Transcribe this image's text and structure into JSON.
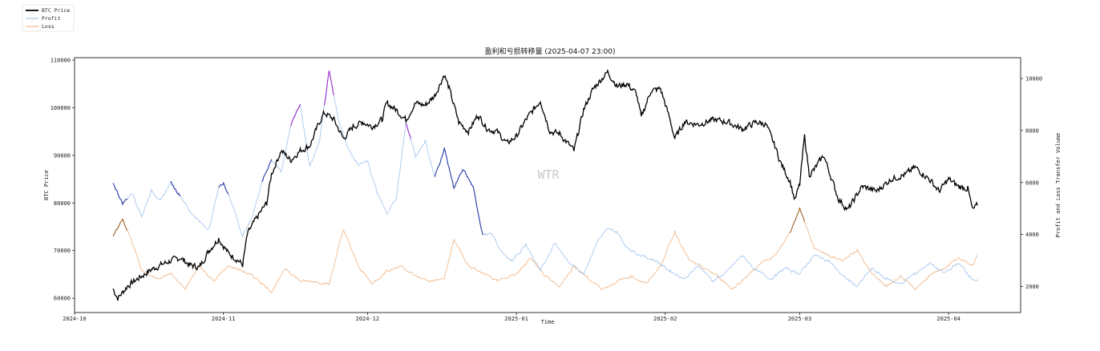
{
  "chart_data": {
    "type": "line",
    "title": "盈利和亏损转移量 (2025-04-07 23:00)",
    "xlabel": "Time",
    "ylabel_left": "BTC Price",
    "ylabel_right": "Profit and Loss Transfer Volume",
    "watermark": "WTR",
    "x_ticks": [
      "2024-10",
      "2024-11",
      "2024-12",
      "2025-01",
      "2025-02",
      "2025-03",
      "2025-04"
    ],
    "y_left_ticks": [
      60000,
      70000,
      80000,
      90000,
      100000,
      110000
    ],
    "y_right_ticks": [
      2000,
      4000,
      6000,
      8000,
      10000
    ],
    "y_left_range": [
      57000,
      110500
    ],
    "y_right_range": [
      1000,
      10800
    ],
    "x_range": [
      "2024-10-01",
      "2025-04-16"
    ],
    "legend_position": "top-left",
    "grid": false,
    "series": [
      {
        "name": "BTC Price",
        "axis": "left",
        "color": "#000000",
        "points": [
          [
            "2024-10-09",
            62000
          ],
          [
            "2024-10-10",
            60000
          ],
          [
            "2024-10-12",
            62500
          ],
          [
            "2024-10-14",
            64000
          ],
          [
            "2024-10-17",
            66000
          ],
          [
            "2024-10-20",
            67500
          ],
          [
            "2024-10-23",
            68500
          ],
          [
            "2024-10-25",
            67000
          ],
          [
            "2024-10-27",
            66500
          ],
          [
            "2024-10-29",
            70000
          ],
          [
            "2024-10-31",
            72500
          ],
          [
            "2024-11-02",
            69500
          ],
          [
            "2024-11-04",
            68000
          ],
          [
            "2024-11-05",
            67000
          ],
          [
            "2024-11-06",
            73500
          ],
          [
            "2024-11-08",
            77000
          ],
          [
            "2024-11-10",
            80000
          ],
          [
            "2024-11-11",
            86000
          ],
          [
            "2024-11-13",
            91000
          ],
          [
            "2024-11-15",
            89000
          ],
          [
            "2024-11-17",
            91000
          ],
          [
            "2024-11-19",
            92000
          ],
          [
            "2024-11-21",
            97000
          ],
          [
            "2024-11-22",
            99000
          ],
          [
            "2024-11-24",
            97500
          ],
          [
            "2024-11-26",
            93500
          ],
          [
            "2024-11-28",
            96000
          ],
          [
            "2024-11-30",
            97000
          ],
          [
            "2024-12-02",
            96000
          ],
          [
            "2024-12-04",
            97500
          ],
          [
            "2024-12-05",
            101000
          ],
          [
            "2024-12-07",
            99500
          ],
          [
            "2024-12-09",
            97500
          ],
          [
            "2024-12-11",
            101000
          ],
          [
            "2024-12-13",
            100500
          ],
          [
            "2024-12-15",
            102500
          ],
          [
            "2024-12-17",
            107000
          ],
          [
            "2024-12-18",
            104000
          ],
          [
            "2024-12-20",
            97000
          ],
          [
            "2024-12-22",
            95000
          ],
          [
            "2024-12-24",
            98500
          ],
          [
            "2024-12-26",
            95500
          ],
          [
            "2024-12-28",
            95000
          ],
          [
            "2024-12-30",
            92500
          ],
          [
            "2025-01-01",
            94000
          ],
          [
            "2025-01-03",
            97500
          ],
          [
            "2025-01-06",
            101500
          ],
          [
            "2025-01-08",
            95000
          ],
          [
            "2025-01-10",
            94500
          ],
          [
            "2025-01-13",
            91000
          ],
          [
            "2025-01-15",
            99500
          ],
          [
            "2025-01-17",
            104000
          ],
          [
            "2025-01-20",
            107500
          ],
          [
            "2025-01-22",
            104500
          ],
          [
            "2025-01-24",
            105000
          ],
          [
            "2025-01-26",
            103000
          ],
          [
            "2025-01-27",
            98000
          ],
          [
            "2025-01-29",
            103500
          ],
          [
            "2025-01-31",
            104000
          ],
          [
            "2025-02-02",
            97500
          ],
          [
            "2025-02-03",
            93500
          ],
          [
            "2025-02-05",
            97000
          ],
          [
            "2025-02-08",
            96500
          ],
          [
            "2025-02-11",
            97500
          ],
          [
            "2025-02-14",
            97000
          ],
          [
            "2025-02-17",
            95500
          ],
          [
            "2025-02-20",
            97000
          ],
          [
            "2025-02-22",
            96500
          ],
          [
            "2025-02-24",
            91500
          ],
          [
            "2025-02-25",
            88500
          ],
          [
            "2025-02-27",
            84500
          ],
          [
            "2025-02-28",
            80500
          ],
          [
            "2025-03-01",
            84000
          ],
          [
            "2025-03-02",
            94000
          ],
          [
            "2025-03-03",
            86000
          ],
          [
            "2025-03-04",
            87000
          ],
          [
            "2025-03-06",
            90000
          ],
          [
            "2025-03-09",
            81000
          ],
          [
            "2025-03-11",
            78500
          ],
          [
            "2025-03-14",
            83500
          ],
          [
            "2025-03-17",
            82500
          ],
          [
            "2025-03-20",
            85000
          ],
          [
            "2025-03-23",
            86000
          ],
          [
            "2025-03-25",
            87500
          ],
          [
            "2025-03-28",
            85000
          ],
          [
            "2025-03-30",
            82500
          ],
          [
            "2025-04-01",
            85000
          ],
          [
            "2025-04-03",
            83500
          ],
          [
            "2025-04-05",
            83000
          ],
          [
            "2025-04-06",
            78500
          ],
          [
            "2025-04-07",
            79500
          ]
        ]
      },
      {
        "name": "Profit",
        "axis": "right",
        "color": "#a9c8ee",
        "points": [
          [
            "2024-10-09",
            6000
          ],
          [
            "2024-10-11",
            5200
          ],
          [
            "2024-10-13",
            5600
          ],
          [
            "2024-10-15",
            4700
          ],
          [
            "2024-10-17",
            5700
          ],
          [
            "2024-10-19",
            5300
          ],
          [
            "2024-10-21",
            6000
          ],
          [
            "2024-10-23",
            5500
          ],
          [
            "2024-10-25",
            4900
          ],
          [
            "2024-10-27",
            4500
          ],
          [
            "2024-10-29",
            4200
          ],
          [
            "2024-10-31",
            5800
          ],
          [
            "2024-11-01",
            6000
          ],
          [
            "2024-11-03",
            5100
          ],
          [
            "2024-11-05",
            3900
          ],
          [
            "2024-11-07",
            4700
          ],
          [
            "2024-11-09",
            6000
          ],
          [
            "2024-11-11",
            6900
          ],
          [
            "2024-11-13",
            6400
          ],
          [
            "2024-11-15",
            8200
          ],
          [
            "2024-11-17",
            9000
          ],
          [
            "2024-11-19",
            6600
          ],
          [
            "2024-11-21",
            7600
          ],
          [
            "2024-11-23",
            10300
          ],
          [
            "2024-11-25",
            8400
          ],
          [
            "2024-11-27",
            7300
          ],
          [
            "2024-11-29",
            6700
          ],
          [
            "2024-12-01",
            6800
          ],
          [
            "2024-12-03",
            5600
          ],
          [
            "2024-12-05",
            4800
          ],
          [
            "2024-12-07",
            5400
          ],
          [
            "2024-12-09",
            8300
          ],
          [
            "2024-12-11",
            7000
          ],
          [
            "2024-12-13",
            7600
          ],
          [
            "2024-12-15",
            6200
          ],
          [
            "2024-12-17",
            7300
          ],
          [
            "2024-12-19",
            5800
          ],
          [
            "2024-12-21",
            6500
          ],
          [
            "2024-12-23",
            5800
          ],
          [
            "2024-12-25",
            4000
          ],
          [
            "2024-12-27",
            4000
          ],
          [
            "2024-12-29",
            3300
          ],
          [
            "2024-12-31",
            3000
          ],
          [
            "2025-01-03",
            3600
          ],
          [
            "2025-01-06",
            2600
          ],
          [
            "2025-01-09",
            3700
          ],
          [
            "2025-01-12",
            2900
          ],
          [
            "2025-01-15",
            2500
          ],
          [
            "2025-01-18",
            3800
          ],
          [
            "2025-01-20",
            4200
          ],
          [
            "2025-01-22",
            4100
          ],
          [
            "2025-01-24",
            3500
          ],
          [
            "2025-01-27",
            3200
          ],
          [
            "2025-01-30",
            3000
          ],
          [
            "2025-02-02",
            2600
          ],
          [
            "2025-02-05",
            2300
          ],
          [
            "2025-02-08",
            2800
          ],
          [
            "2025-02-11",
            2200
          ],
          [
            "2025-02-14",
            2600
          ],
          [
            "2025-02-17",
            3200
          ],
          [
            "2025-02-20",
            2600
          ],
          [
            "2025-02-23",
            2300
          ],
          [
            "2025-02-26",
            2700
          ],
          [
            "2025-03-01",
            2500
          ],
          [
            "2025-03-04",
            3200
          ],
          [
            "2025-03-07",
            3000
          ],
          [
            "2025-03-10",
            2400
          ],
          [
            "2025-03-13",
            2000
          ],
          [
            "2025-03-16",
            2700
          ],
          [
            "2025-03-19",
            2300
          ],
          [
            "2025-03-22",
            2100
          ],
          [
            "2025-03-25",
            2500
          ],
          [
            "2025-03-28",
            2900
          ],
          [
            "2025-03-31",
            2500
          ],
          [
            "2025-04-03",
            2900
          ],
          [
            "2025-04-06",
            2300
          ],
          [
            "2025-04-07",
            2200
          ]
        ]
      },
      {
        "name": "Loss",
        "axis": "right",
        "color": "#f0b98c",
        "points": [
          [
            "2024-10-09",
            3900
          ],
          [
            "2024-10-11",
            4600
          ],
          [
            "2024-10-13",
            3700
          ],
          [
            "2024-10-15",
            2600
          ],
          [
            "2024-10-18",
            2300
          ],
          [
            "2024-10-21",
            2500
          ],
          [
            "2024-10-24",
            1900
          ],
          [
            "2024-10-27",
            2800
          ],
          [
            "2024-10-30",
            2200
          ],
          [
            "2024-11-02",
            2800
          ],
          [
            "2024-11-05",
            2600
          ],
          [
            "2024-11-08",
            2300
          ],
          [
            "2024-11-11",
            1800
          ],
          [
            "2024-11-14",
            2700
          ],
          [
            "2024-11-17",
            2200
          ],
          [
            "2024-11-20",
            2200
          ],
          [
            "2024-11-23",
            2100
          ],
          [
            "2024-11-26",
            4200
          ],
          [
            "2024-11-29",
            2800
          ],
          [
            "2024-12-02",
            2100
          ],
          [
            "2024-12-05",
            2600
          ],
          [
            "2024-12-08",
            2800
          ],
          [
            "2024-12-11",
            2400
          ],
          [
            "2024-12-14",
            2200
          ],
          [
            "2024-12-17",
            2300
          ],
          [
            "2024-12-19",
            3800
          ],
          [
            "2024-12-22",
            2800
          ],
          [
            "2024-12-25",
            2500
          ],
          [
            "2024-12-28",
            2200
          ],
          [
            "2025-01-01",
            2500
          ],
          [
            "2025-01-04",
            3100
          ],
          [
            "2025-01-07",
            2400
          ],
          [
            "2025-01-10",
            2000
          ],
          [
            "2025-01-13",
            2800
          ],
          [
            "2025-01-16",
            2300
          ],
          [
            "2025-01-19",
            1900
          ],
          [
            "2025-01-22",
            2200
          ],
          [
            "2025-01-25",
            2400
          ],
          [
            "2025-01-28",
            2100
          ],
          [
            "2025-01-31",
            2800
          ],
          [
            "2025-02-03",
            4100
          ],
          [
            "2025-02-06",
            3000
          ],
          [
            "2025-02-09",
            2700
          ],
          [
            "2025-02-12",
            2400
          ],
          [
            "2025-02-15",
            1900
          ],
          [
            "2025-02-18",
            2400
          ],
          [
            "2025-02-21",
            2900
          ],
          [
            "2025-02-24",
            3200
          ],
          [
            "2025-02-27",
            4100
          ],
          [
            "2025-03-01",
            5000
          ],
          [
            "2025-03-04",
            3500
          ],
          [
            "2025-03-07",
            3200
          ],
          [
            "2025-03-10",
            3000
          ],
          [
            "2025-03-13",
            3400
          ],
          [
            "2025-03-16",
            2500
          ],
          [
            "2025-03-19",
            2000
          ],
          [
            "2025-03-22",
            2400
          ],
          [
            "2025-03-25",
            1900
          ],
          [
            "2025-03-28",
            2400
          ],
          [
            "2025-03-31",
            2700
          ],
          [
            "2025-04-03",
            3100
          ],
          [
            "2025-04-06",
            2800
          ],
          [
            "2025-04-07",
            3200
          ]
        ]
      }
    ],
    "highlight_segments": [
      {
        "series": "Profit",
        "color": "#2a3aa6",
        "from": "2024-10-09",
        "to": "2024-10-12"
      },
      {
        "series": "Profit",
        "color": "#2a3aa6",
        "from": "2024-10-21",
        "to": "2024-10-23"
      },
      {
        "series": "Profit",
        "color": "#2a3aa6",
        "from": "2024-10-31",
        "to": "2024-11-02"
      },
      {
        "series": "Profit",
        "color": "#2a3aa6",
        "from": "2024-11-09",
        "to": "2024-11-11"
      },
      {
        "series": "Profit",
        "color": "#9a2ad0",
        "from": "2024-11-15",
        "to": "2024-11-17"
      },
      {
        "series": "Profit",
        "color": "#9a2ad0",
        "from": "2024-11-22",
        "to": "2024-11-24"
      },
      {
        "series": "Profit",
        "color": "#9a2ad0",
        "from": "2024-12-09",
        "to": "2024-12-10"
      },
      {
        "series": "Profit",
        "color": "#2a3aa6",
        "from": "2024-12-15",
        "to": "2024-12-25"
      },
      {
        "series": "Loss",
        "color": "#a0632b",
        "from": "2024-10-09",
        "to": "2024-10-12"
      },
      {
        "series": "Loss",
        "color": "#a0632b",
        "from": "2025-02-27",
        "to": "2025-03-02"
      }
    ]
  }
}
